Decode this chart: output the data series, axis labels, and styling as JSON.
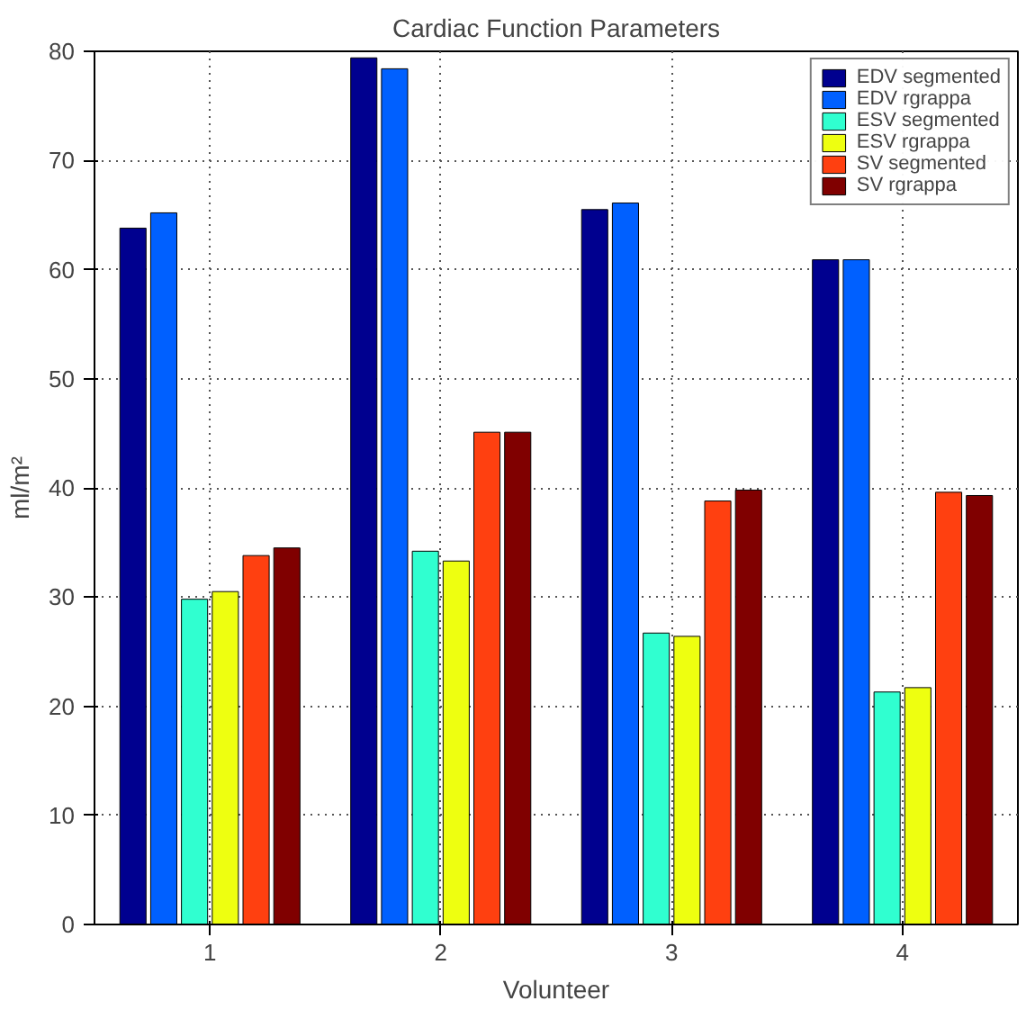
{
  "chart_data": {
    "type": "bar",
    "title": "Cardiac Function Parameters",
    "xlabel": "Volunteer",
    "ylabel": "ml/m²",
    "x": [
      1,
      2,
      3,
      4
    ],
    "xlim": [
      0.5,
      4.5
    ],
    "xticks": [
      1,
      2,
      3,
      4
    ],
    "ylim": [
      0,
      80
    ],
    "yticks": [
      0,
      10,
      20,
      30,
      40,
      50,
      60,
      70,
      80
    ],
    "series": [
      {
        "name": "EDV segmented",
        "color": "#00008f",
        "values": [
          63.8,
          79.4,
          65.5,
          60.9
        ]
      },
      {
        "name": "EDV rgrappa",
        "color": "#0060ff",
        "values": [
          65.2,
          78.4,
          66.1,
          60.9
        ]
      },
      {
        "name": "ESV segmented",
        "color": "#30ffd0",
        "values": [
          29.8,
          34.2,
          26.7,
          21.3
        ]
      },
      {
        "name": "ESV rgrappa",
        "color": "#eeff10",
        "values": [
          30.5,
          33.3,
          26.4,
          21.7
        ]
      },
      {
        "name": "SV segmented",
        "color": "#ff4010",
        "values": [
          33.8,
          45.1,
          38.8,
          39.6
        ]
      },
      {
        "name": "SV rgrappa",
        "color": "#800000",
        "values": [
          34.5,
          45.1,
          39.8,
          39.3
        ]
      }
    ],
    "grid": true,
    "legend": "top right"
  }
}
